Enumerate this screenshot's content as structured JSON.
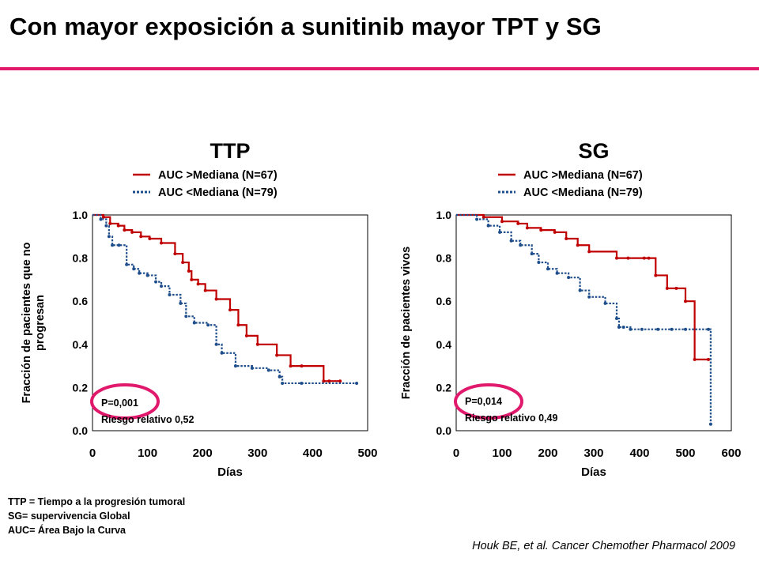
{
  "title": "Con mayor exposición a sunitinib mayor TPT y SG",
  "colors": {
    "accent_rule": "#e0196c",
    "high_auc": "#c00000",
    "low_auc": "#1f4e8c",
    "pvalue_circle": "#e0196c"
  },
  "footnotes": [
    "TTP = Tiempo a la progresión tumoral",
    "SG= supervivencia Global",
    "AUC= Área Bajo la Curva"
  ],
  "citation": "Houk BE, et al. Cancer Chemother Pharmacol 2009",
  "chart_data": [
    {
      "type": "line",
      "title": "TTP",
      "xlabel": "Días",
      "ylabel": "Fracción de pacientes que no progresan",
      "xlim": [
        0,
        500
      ],
      "ylim": [
        0,
        1
      ],
      "xticks": [
        "0",
        "100",
        "200",
        "300",
        "400",
        "500"
      ],
      "yticks": [
        "0.0",
        "0.2",
        "0.4",
        "0.6",
        "0.8",
        "1.0"
      ],
      "legend_position": "top",
      "annotation": {
        "p_value": "P=0,001",
        "hazard_ratio": "Riesgo relativo 0,52"
      },
      "series": [
        {
          "name": "AUC >Mediana (N=67)",
          "style": "solid",
          "color": "#c00000",
          "x": [
            0,
            20,
            32,
            47,
            58,
            72,
            88,
            104,
            125,
            150,
            164,
            175,
            180,
            192,
            205,
            225,
            250,
            265,
            280,
            300,
            335,
            360,
            380,
            420,
            430,
            450
          ],
          "y": [
            1.0,
            0.99,
            0.96,
            0.95,
            0.93,
            0.92,
            0.9,
            0.89,
            0.87,
            0.82,
            0.78,
            0.74,
            0.7,
            0.68,
            0.65,
            0.61,
            0.56,
            0.49,
            0.44,
            0.4,
            0.35,
            0.3,
            0.3,
            0.23,
            0.23,
            0.23
          ]
        },
        {
          "name": "AUC <Mediana (N=79)",
          "style": "dotted",
          "color": "#1f4e8c",
          "x": [
            0,
            15,
            25,
            30,
            36,
            48,
            62,
            75,
            85,
            100,
            115,
            125,
            140,
            160,
            170,
            185,
            210,
            225,
            235,
            260,
            290,
            320,
            340,
            345,
            380,
            480
          ],
          "y": [
            1.0,
            0.98,
            0.95,
            0.9,
            0.86,
            0.86,
            0.77,
            0.75,
            0.73,
            0.72,
            0.69,
            0.67,
            0.63,
            0.59,
            0.53,
            0.5,
            0.49,
            0.4,
            0.36,
            0.3,
            0.29,
            0.28,
            0.25,
            0.22,
            0.22,
            0.22
          ]
        }
      ]
    },
    {
      "type": "line",
      "title": "SG",
      "xlabel": "Días",
      "ylabel": "Fracción de pacientes vivos",
      "xlim": [
        0,
        600
      ],
      "ylim": [
        0,
        1
      ],
      "xticks": [
        "0",
        "100",
        "200",
        "300",
        "400",
        "500",
        "600"
      ],
      "yticks": [
        "0.0",
        "0.2",
        "0.4",
        "0.6",
        "0.8",
        "1.0"
      ],
      "legend_position": "top",
      "annotation": {
        "p_value": "P=0,014",
        "hazard_ratio": "Riesgo relativo 0,49"
      },
      "series": [
        {
          "name": "AUC >Mediana (N=67)",
          "style": "solid",
          "color": "#c00000",
          "x": [
            0,
            60,
            100,
            135,
            155,
            185,
            215,
            240,
            265,
            290,
            350,
            375,
            410,
            420,
            435,
            460,
            480,
            500,
            520,
            550
          ],
          "y": [
            1.0,
            0.99,
            0.97,
            0.96,
            0.94,
            0.93,
            0.92,
            0.89,
            0.86,
            0.83,
            0.8,
            0.8,
            0.8,
            0.8,
            0.72,
            0.66,
            0.66,
            0.6,
            0.33,
            0.33
          ]
        },
        {
          "name": "AUC <Mediana (N=79)",
          "style": "dotted",
          "color": "#1f4e8c",
          "x": [
            0,
            45,
            70,
            95,
            120,
            140,
            165,
            180,
            200,
            220,
            245,
            270,
            290,
            325,
            350,
            355,
            365,
            380,
            405,
            440,
            470,
            500,
            550,
            555
          ],
          "y": [
            1.0,
            0.98,
            0.95,
            0.92,
            0.88,
            0.86,
            0.82,
            0.78,
            0.75,
            0.73,
            0.71,
            0.65,
            0.62,
            0.59,
            0.52,
            0.48,
            0.48,
            0.47,
            0.47,
            0.47,
            0.47,
            0.47,
            0.47,
            0.03
          ]
        }
      ]
    }
  ]
}
